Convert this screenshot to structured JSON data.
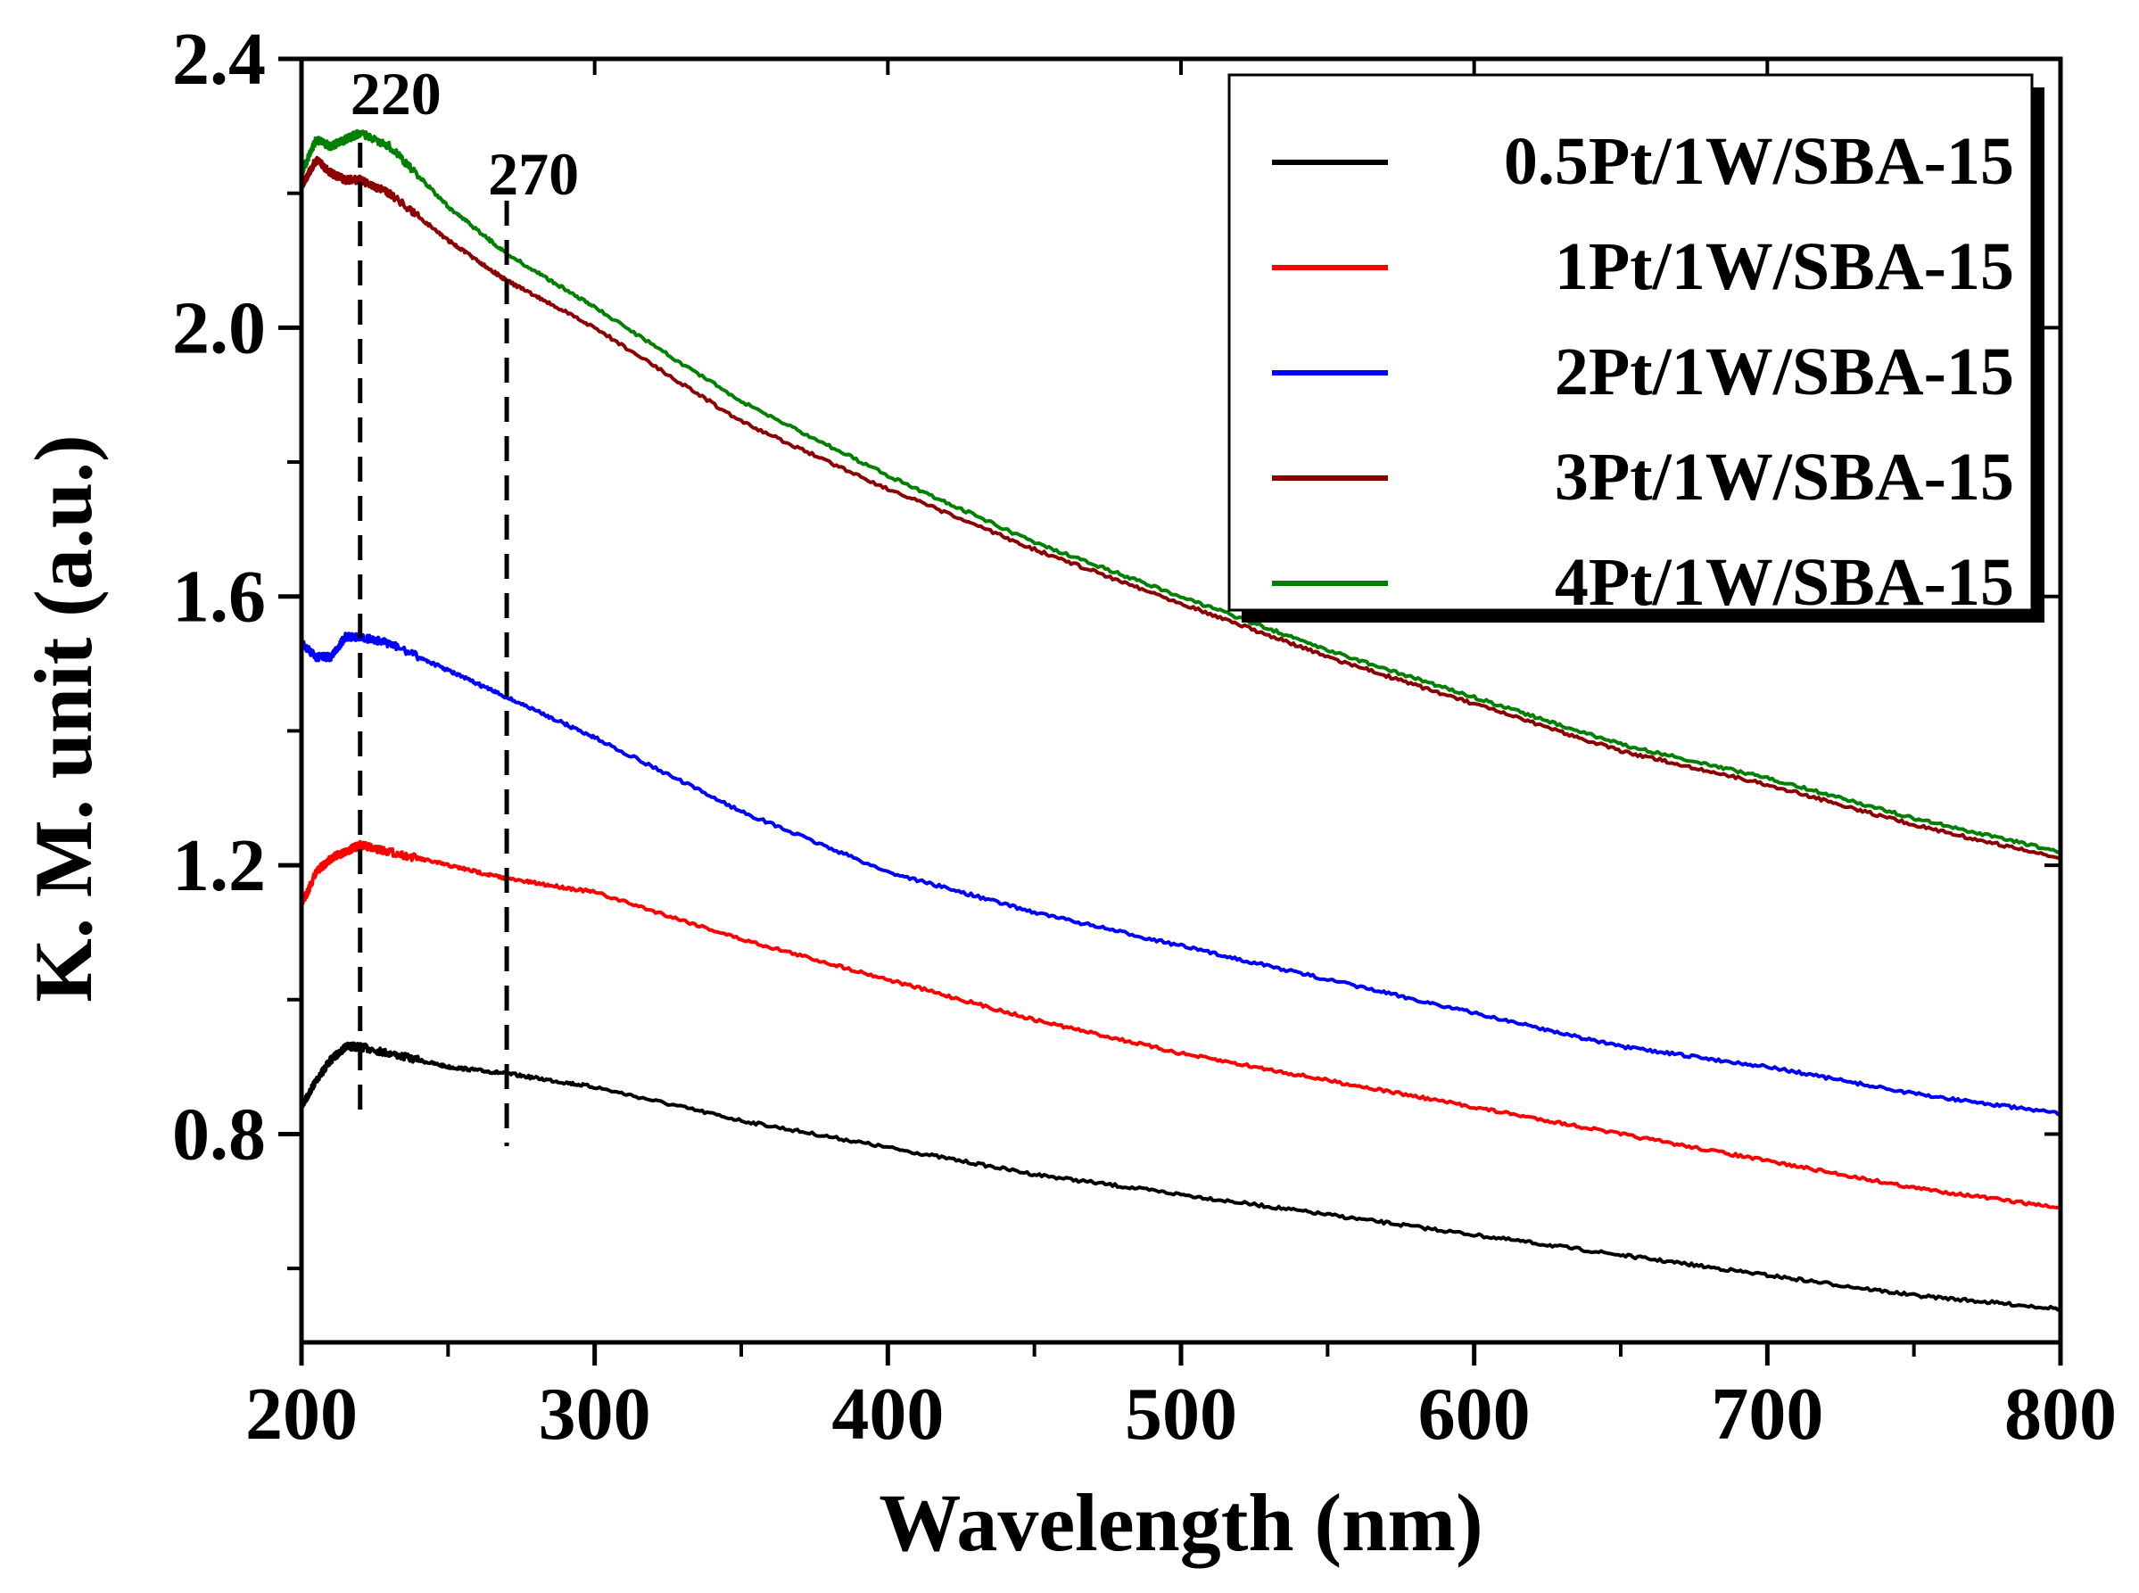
{
  "chart_data": {
    "type": "line",
    "xlabel": "Wavelength (nm)",
    "ylabel": "K. M. unit (a.u.)",
    "xlim": [
      200,
      800
    ],
    "ylim": [
      0.49,
      2.4
    ],
    "xticks": [
      200,
      300,
      400,
      500,
      600,
      700,
      800
    ],
    "yticks": [
      0.8,
      1.2,
      1.6,
      2.0,
      2.4
    ],
    "xticks_labels": [
      "200",
      "300",
      "400",
      "500",
      "600",
      "700",
      "800"
    ],
    "yticks_labels": [
      "0.8",
      "1.2",
      "1.6",
      "2.0",
      "2.4"
    ],
    "grid": false,
    "legend_position": "top-right",
    "annotations": [
      {
        "text": "220",
        "x": 220
      },
      {
        "text": "270",
        "x": 270
      }
    ],
    "series": [
      {
        "name": "0.5Pt/1W/SBA-15",
        "color": "#000000",
        "x": [
          200,
          205,
          210,
          215,
          220,
          230,
          250,
          270,
          300,
          350,
          400,
          450,
          500,
          550,
          600,
          650,
          700,
          750,
          800
        ],
        "y": [
          0.84,
          0.88,
          0.91,
          0.93,
          0.93,
          0.92,
          0.9,
          0.89,
          0.87,
          0.82,
          0.78,
          0.74,
          0.71,
          0.68,
          0.65,
          0.62,
          0.59,
          0.56,
          0.54
        ]
      },
      {
        "name": "1Pt/1W/SBA-15",
        "color": "#ff0000",
        "x": [
          200,
          205,
          210,
          215,
          220,
          230,
          250,
          270,
          300,
          350,
          400,
          450,
          500,
          550,
          600,
          650,
          700,
          750,
          800
        ],
        "y": [
          1.14,
          1.19,
          1.21,
          1.22,
          1.23,
          1.22,
          1.2,
          1.18,
          1.16,
          1.09,
          1.03,
          0.97,
          0.92,
          0.88,
          0.84,
          0.8,
          0.76,
          0.72,
          0.69
        ]
      },
      {
        "name": "2Pt/1W/SBA-15",
        "color": "#0000ff",
        "x": [
          200,
          205,
          210,
          215,
          220,
          230,
          250,
          270,
          300,
          350,
          400,
          450,
          500,
          550,
          600,
          650,
          700,
          750,
          800
        ],
        "y": [
          1.53,
          1.51,
          1.51,
          1.54,
          1.54,
          1.53,
          1.49,
          1.45,
          1.39,
          1.28,
          1.19,
          1.13,
          1.08,
          1.03,
          0.98,
          0.93,
          0.9,
          0.86,
          0.83
        ]
      },
      {
        "name": "3Pt/1W/SBA-15",
        "color": "#8b0000",
        "x": [
          200,
          205,
          210,
          215,
          220,
          230,
          250,
          270,
          300,
          350,
          400,
          450,
          500,
          550,
          600,
          650,
          700,
          750,
          800
        ],
        "y": [
          2.21,
          2.25,
          2.23,
          2.22,
          2.22,
          2.2,
          2.13,
          2.07,
          2.0,
          1.86,
          1.76,
          1.67,
          1.59,
          1.51,
          1.44,
          1.37,
          1.32,
          1.26,
          1.21
        ]
      },
      {
        "name": "4Pt/1W/SBA-15",
        "color": "#008000",
        "x": [
          200,
          205,
          210,
          215,
          220,
          230,
          250,
          270,
          300,
          350,
          400,
          450,
          500,
          550,
          600,
          650,
          700,
          750,
          800
        ],
        "y": [
          2.23,
          2.28,
          2.27,
          2.28,
          2.29,
          2.27,
          2.18,
          2.11,
          2.03,
          1.89,
          1.78,
          1.68,
          1.6,
          1.52,
          1.45,
          1.38,
          1.33,
          1.27,
          1.22
        ]
      }
    ]
  }
}
